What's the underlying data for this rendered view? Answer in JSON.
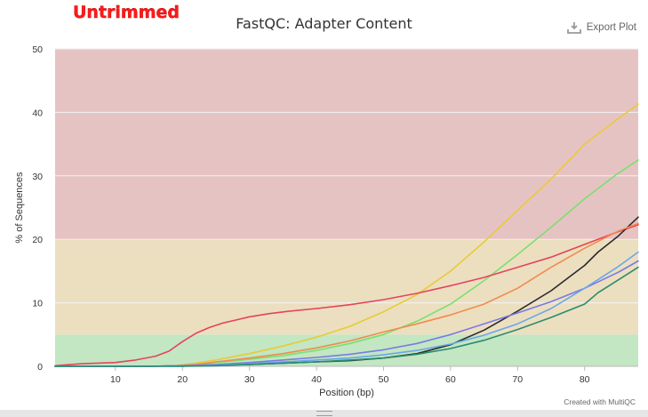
{
  "badge": "Untrimmed",
  "export_label": "Export Plot",
  "credit": "Created with MultiQC",
  "colors": {
    "band_red": "#e6c3c3",
    "band_yellow": "#ecdfc0",
    "band_green": "#c3e6c3"
  },
  "chart_data": {
    "type": "line",
    "title": "FastQC: Adapter Content",
    "xlabel": "Position (bp)",
    "ylabel": "% of Sequences",
    "xlim": [
      1,
      88
    ],
    "ylim": [
      0,
      50
    ],
    "xticks": [
      10,
      20,
      30,
      40,
      50,
      60,
      70,
      80
    ],
    "yticks": [
      0,
      10,
      20,
      30,
      40,
      50
    ],
    "grid": true,
    "bands": [
      {
        "from": 0,
        "to": 5,
        "color": "#c3e6c3"
      },
      {
        "from": 5,
        "to": 20,
        "color": "#ecdfc0"
      },
      {
        "from": 20,
        "to": 50,
        "color": "#e6c3c3"
      }
    ],
    "series": [
      {
        "color": "#e8ca37",
        "x": [
          1,
          10,
          15,
          19,
          22,
          25,
          30,
          35,
          40,
          45,
          50,
          55,
          60,
          65,
          70,
          75,
          80,
          85,
          88
        ],
        "y": [
          0,
          0,
          0,
          0.1,
          0.5,
          1.0,
          2.0,
          3.2,
          4.6,
          6.3,
          8.6,
          11.3,
          15.0,
          19.6,
          24.6,
          29.5,
          35.0,
          39.0,
          41.3
        ]
      },
      {
        "color": "#7be06e",
        "x": [
          1,
          10,
          15,
          19,
          22,
          25,
          30,
          35,
          40,
          45,
          50,
          55,
          60,
          65,
          70,
          75,
          80,
          85,
          88
        ],
        "y": [
          0,
          0,
          0,
          0.1,
          0.3,
          0.6,
          1.1,
          1.7,
          2.5,
          3.6,
          5.0,
          7.1,
          9.8,
          13.5,
          17.6,
          21.9,
          26.4,
          30.4,
          32.5
        ]
      },
      {
        "color": "#e6435a",
        "x": [
          1,
          5,
          10,
          13,
          16,
          18,
          20,
          22,
          24,
          26,
          28,
          30,
          33,
          36,
          40,
          45,
          50,
          55,
          60,
          65,
          70,
          75,
          80,
          85,
          88
        ],
        "y": [
          0.1,
          0.4,
          0.6,
          1.0,
          1.6,
          2.4,
          3.9,
          5.2,
          6.1,
          6.8,
          7.3,
          7.8,
          8.3,
          8.7,
          9.1,
          9.7,
          10.5,
          11.5,
          12.7,
          14.0,
          15.6,
          17.2,
          19.2,
          21.2,
          22.3
        ]
      },
      {
        "color": "#2b2b2b",
        "x": [
          1,
          10,
          15,
          20,
          25,
          30,
          35,
          40,
          45,
          50,
          55,
          60,
          65,
          70,
          75,
          80,
          82,
          85,
          88
        ],
        "y": [
          0,
          0,
          0,
          0.1,
          0.2,
          0.3,
          0.5,
          0.7,
          0.9,
          1.3,
          2.0,
          3.4,
          5.7,
          8.7,
          11.9,
          15.9,
          18.0,
          20.5,
          23.5
        ]
      },
      {
        "color": "#f28b4e",
        "x": [
          1,
          10,
          15,
          19,
          22,
          25,
          30,
          35,
          40,
          45,
          50,
          55,
          60,
          65,
          70,
          75,
          80,
          85,
          88
        ],
        "y": [
          0,
          0,
          0,
          0.1,
          0.3,
          0.7,
          1.3,
          2.0,
          2.9,
          4.0,
          5.4,
          6.7,
          8.1,
          9.8,
          12.3,
          15.6,
          18.6,
          21.3,
          22.5
        ]
      },
      {
        "color": "#7a7ae0",
        "x": [
          1,
          10,
          15,
          20,
          25,
          30,
          35,
          40,
          45,
          50,
          55,
          60,
          65,
          70,
          75,
          80,
          85,
          88
        ],
        "y": [
          0,
          0,
          0,
          0.1,
          0.3,
          0.6,
          1.0,
          1.4,
          1.9,
          2.6,
          3.6,
          5.0,
          6.7,
          8.4,
          10.2,
          12.3,
          14.8,
          16.6
        ]
      },
      {
        "color": "#6aa7e8",
        "x": [
          1,
          10,
          15,
          20,
          25,
          30,
          35,
          40,
          45,
          50,
          55,
          60,
          65,
          70,
          75,
          80,
          85,
          88
        ],
        "y": [
          0,
          0,
          0,
          0,
          0.2,
          0.4,
          0.7,
          1.0,
          1.3,
          1.8,
          2.5,
          3.5,
          4.9,
          6.7,
          9.1,
          12.3,
          15.7,
          18.0
        ]
      },
      {
        "color": "#2a8c6c",
        "x": [
          1,
          10,
          15,
          20,
          25,
          30,
          35,
          40,
          45,
          50,
          55,
          60,
          65,
          70,
          75,
          80,
          82,
          85,
          88
        ],
        "y": [
          0,
          0,
          0,
          0,
          0.1,
          0.3,
          0.5,
          0.7,
          1.0,
          1.3,
          1.9,
          2.8,
          4.1,
          5.8,
          7.7,
          9.8,
          11.6,
          13.6,
          15.6
        ]
      }
    ]
  }
}
